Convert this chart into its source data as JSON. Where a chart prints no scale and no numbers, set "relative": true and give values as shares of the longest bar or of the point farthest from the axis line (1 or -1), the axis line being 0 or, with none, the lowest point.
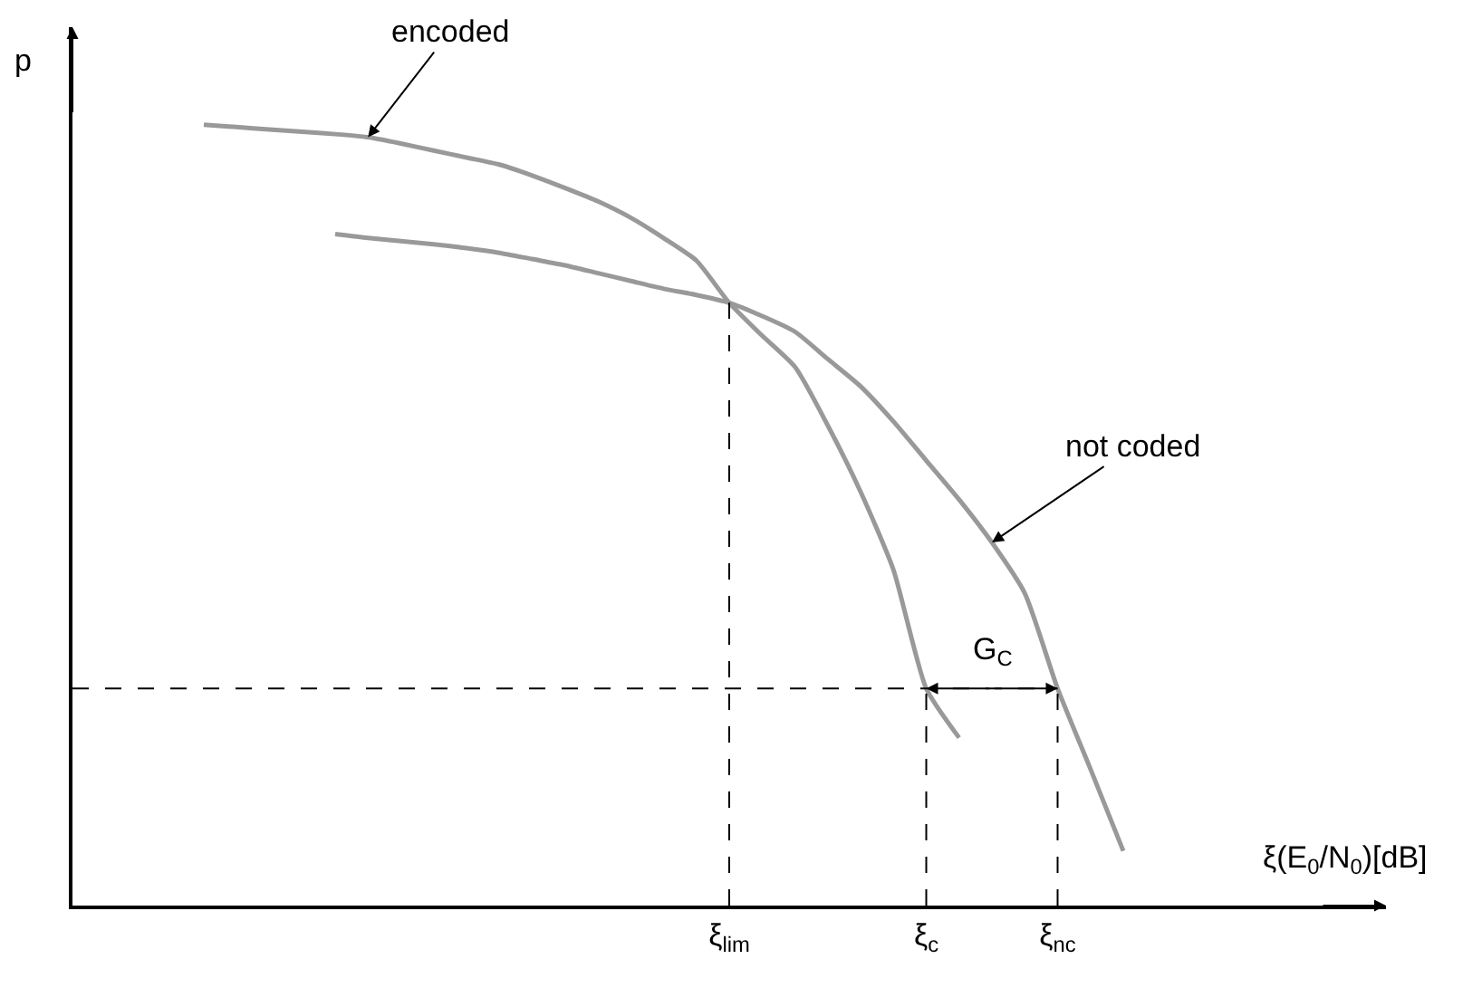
{
  "chart_data": {
    "type": "line",
    "relative": true,
    "xlabel": "ξ(E$_{0}$/N$_{0}$)[dB]",
    "ylabel": "p",
    "categories": [
      null,
      null,
      null,
      null,
      null,
      null,
      null,
      null,
      null,
      null,
      null,
      null,
      null,
      null,
      null,
      null,
      null,
      null,
      null,
      null,
      "ξ$_{lim}$",
      null,
      null,
      null,
      null,
      null,
      "ξ$_{c}$",
      null,
      null,
      null,
      "ξ$_{nc}$",
      null,
      null,
      null,
      null,
      null,
      null,
      null,
      null,
      null,
      null
    ],
    "series": [
      {
        "color": "#999999",
        "values": [
          null,
          null,
          null,
          null,
          1.0,
          0.997,
          0.994,
          0.991,
          0.988,
          0.984,
          0.976,
          0.967,
          0.958,
          0.949,
          0.935,
          0.919,
          0.902,
          0.881,
          0.855,
          0.826,
          0.772,
          0.73,
          0.69,
          0.615,
          0.53,
          0.43,
          0.278,
          0.215,
          null,
          null,
          null,
          null,
          null,
          null,
          null,
          null,
          null,
          null,
          null,
          null,
          null
        ]
      },
      {
        "color": "#999999",
        "values": [
          null,
          null,
          null,
          null,
          null,
          null,
          null,
          null,
          0.86,
          0.855,
          0.851,
          0.847,
          0.842,
          0.836,
          0.828,
          0.82,
          0.81,
          0.8,
          0.79,
          0.782,
          0.772,
          0.755,
          0.735,
          0.7,
          0.665,
          0.62,
          0.57,
          0.52,
          0.465,
          0.4,
          0.278,
          0.175,
          0.07,
          null,
          null,
          null,
          null,
          null,
          null,
          null,
          null
        ]
      }
    ],
    "ref_lines": [
      {
        "axis": "x",
        "value": "ξ$_{lim}$",
        "line_style": "dashed",
        "color": "#000000"
      },
      {
        "axis": "x",
        "value": "ξ$_{c}$",
        "line_style": "dashed",
        "color": "#000000"
      },
      {
        "axis": "x",
        "value": "ξ$_{nc}$",
        "line_style": "dashed",
        "color": "#000000"
      },
      {
        "axis": "y",
        "value": 0.278,
        "line_style": "dashed",
        "color": "#000000"
      }
    ],
    "annotations": [
      "encoded",
      "not coded",
      "G$_{C}$"
    ],
    "legend": false,
    "marker": "none",
    "line_style": "solid"
  }
}
